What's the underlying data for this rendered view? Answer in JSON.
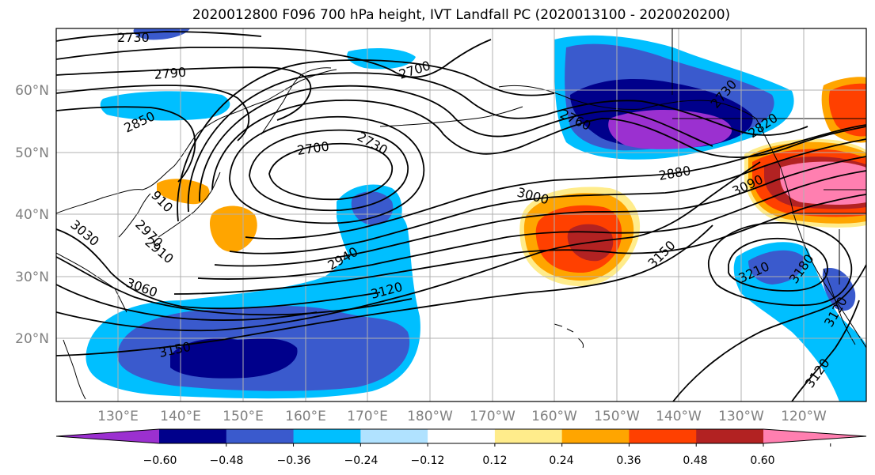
{
  "title": "2020012800 F096 700 hPa height, IVT Landfall PC (2020013100 - 2020020200)",
  "map": {
    "lon_labels": [
      "130°E",
      "140°E",
      "150°E",
      "160°E",
      "170°E",
      "180°W",
      "170°W",
      "160°W",
      "150°W",
      "140°W",
      "130°W",
      "120°W"
    ],
    "lat_labels": [
      "60°N",
      "50°N",
      "40°N",
      "30°N",
      "20°N"
    ],
    "contour_labels": [
      "2730",
      "2790",
      "2850",
      "2700",
      "2700",
      "2730",
      "2760",
      "2730",
      "2820",
      "2880",
      "3090",
      "3000",
      "910",
      "2970",
      "3030",
      "2910",
      "2940",
      "3060",
      "3120",
      "3150",
      "3150",
      "3210",
      "3180",
      "3120",
      "3120"
    ],
    "colors": {
      "line": "#000000",
      "grid": "#b0b0b0",
      "tick_label": "#808080"
    }
  },
  "colorbar": {
    "ticks": [
      "−0.60",
      "−0.48",
      "−0.36",
      "−0.24",
      "−0.12",
      "0.12",
      "0.24",
      "0.36",
      "0.48",
      "0.60"
    ],
    "colors": [
      "#9b30d0",
      "#00008b",
      "#3a5acd",
      "#00bfff",
      "#b0e2ff",
      "#ffffff",
      "#ffec8b",
      "#ffa500",
      "#ff4000",
      "#b22222",
      "#ff7fb0"
    ]
  }
}
